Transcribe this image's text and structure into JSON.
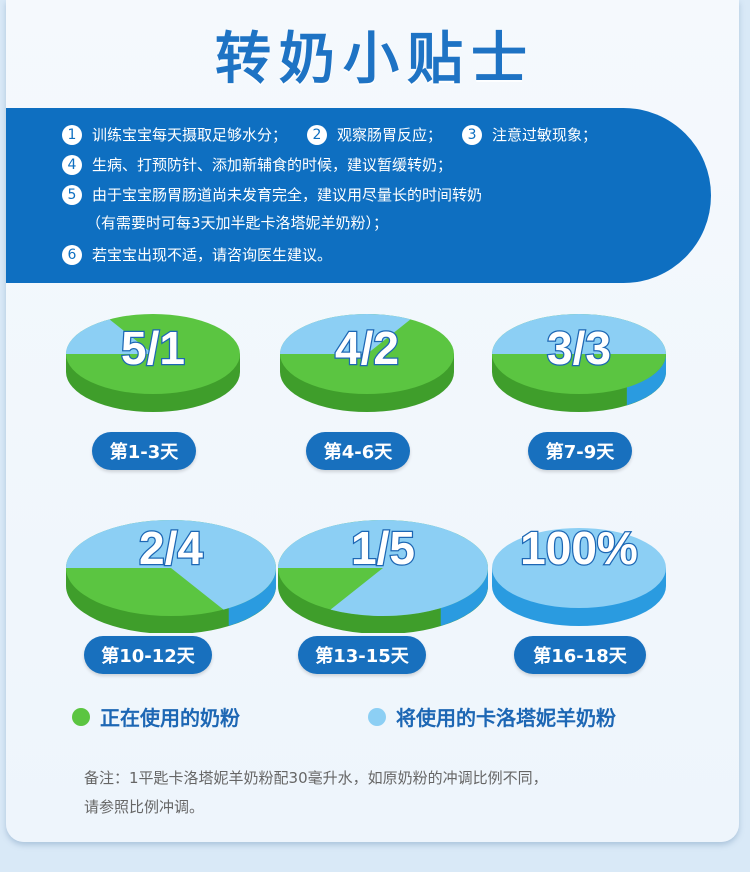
{
  "header": {
    "title": "转奶小贴士"
  },
  "tips": [
    {
      "num": "1",
      "text": "训练宝宝每天摄取足够水分；"
    },
    {
      "num": "2",
      "text": "观察肠胃反应；"
    },
    {
      "num": "3",
      "text": "注意过敏现象；"
    },
    {
      "num": "4",
      "text": "生病、打预防针、添加新辅食的时候，建议暂缓转奶；"
    },
    {
      "num": "5",
      "text": "由于宝宝肠胃肠道尚未发育完全，建议用尽量长的时间转奶"
    },
    {
      "num": "",
      "text": "（有需要时可每3天加半匙卡洛塔妮羊奶粉）；"
    },
    {
      "num": "6",
      "text": "若宝宝出现不适，请咨询医生建议。"
    }
  ],
  "chart_data": {
    "type": "pie",
    "colors": {
      "current": "#5bc541",
      "new": "#8ccff4"
    },
    "series_names": [
      "正在使用的奶粉",
      "将使用的卡洛塔妮羊奶粉"
    ],
    "stages": [
      {
        "ratio_label": "5/1",
        "period": "第1-3天",
        "current": 5,
        "new": 1
      },
      {
        "ratio_label": "4/2",
        "period": "第4-6天",
        "current": 4,
        "new": 2
      },
      {
        "ratio_label": "3/3",
        "period": "第7-9天",
        "current": 3,
        "new": 3
      },
      {
        "ratio_label": "2/4",
        "period": "第10-12天",
        "current": 2,
        "new": 4
      },
      {
        "ratio_label": "1/5",
        "period": "第13-15天",
        "current": 1,
        "new": 5
      },
      {
        "ratio_label": "100%",
        "period": "第16-18天",
        "current": 0,
        "new": 6
      }
    ]
  },
  "legend": {
    "current_label": "正在使用的奶粉",
    "new_label": "将使用的卡洛塔妮羊奶粉"
  },
  "note": {
    "line1": "备注：1平匙卡洛塔妮羊奶粉配30毫升水，如原奶粉的冲调比例不同，",
    "line2": "请参照比例冲调。"
  }
}
